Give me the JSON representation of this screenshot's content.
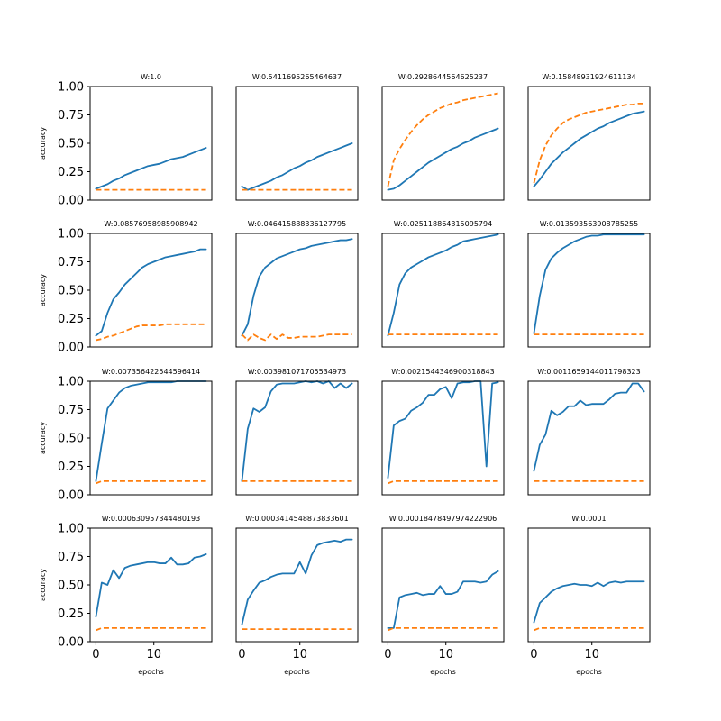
{
  "figure": {
    "panel_titles": [
      "W:1.0",
      "W:0.5411695265464637",
      "W:0.2928644564625237",
      "W:0.15848931924611134",
      "W:0.08576958985908942",
      "W:0.04641588833612779​5",
      "W:0.025118864315095794",
      "W:0.013593563908785255",
      "W:0.007356422544596414",
      "W:0.003981071705534973",
      "W:0.0021544346900318843",
      "W:0.0011659144011798323",
      "W:0.000630957344480193",
      "W:0.0003414548873833601",
      "W:0.00018478497974222906",
      "W:0.0001"
    ],
    "xlabel": "epochs",
    "ylabel": "accuracy"
  },
  "chart_data": {
    "type": "line",
    "layout": "4x4 grid, shared x and y axes",
    "xlabel": "epochs",
    "ylabel": "accuracy",
    "x": [
      0,
      1,
      2,
      3,
      4,
      5,
      6,
      7,
      8,
      9,
      10,
      11,
      12,
      13,
      14,
      15,
      16,
      17,
      18,
      19
    ],
    "xlim": [
      -1,
      20
    ],
    "ylim": [
      0,
      1.0
    ],
    "xticks": [
      "0",
      "10"
    ],
    "yticks": [
      "0.00",
      "0.25",
      "0.50",
      "0.75",
      "1.00"
    ],
    "series_styles": [
      {
        "color": "#1f77b4",
        "style": "solid"
      },
      {
        "color": "#ff7f0e",
        "style": "dashed"
      }
    ],
    "panels": [
      {
        "title": "W:1.0",
        "solid": [
          0.1,
          0.12,
          0.14,
          0.17,
          0.19,
          0.22,
          0.24,
          0.26,
          0.28,
          0.3,
          0.31,
          0.32,
          0.34,
          0.36,
          0.37,
          0.38,
          0.4,
          0.42,
          0.44,
          0.46
        ],
        "dashed": [
          0.09,
          0.09,
          0.09,
          0.09,
          0.09,
          0.09,
          0.09,
          0.09,
          0.09,
          0.09,
          0.09,
          0.09,
          0.09,
          0.09,
          0.09,
          0.09,
          0.09,
          0.09,
          0.09,
          0.09
        ]
      },
      {
        "title": "W:0.5411695265464637",
        "solid": [
          0.12,
          0.09,
          0.11,
          0.13,
          0.15,
          0.17,
          0.2,
          0.22,
          0.25,
          0.28,
          0.3,
          0.33,
          0.35,
          0.38,
          0.4,
          0.42,
          0.44,
          0.46,
          0.48,
          0.5
        ],
        "dashed": [
          0.09,
          0.09,
          0.09,
          0.09,
          0.09,
          0.09,
          0.09,
          0.09,
          0.09,
          0.09,
          0.09,
          0.09,
          0.09,
          0.09,
          0.09,
          0.09,
          0.09,
          0.09,
          0.09,
          0.09
        ]
      },
      {
        "title": "W:0.2928644564625237",
        "solid": [
          0.09,
          0.1,
          0.13,
          0.17,
          0.21,
          0.25,
          0.29,
          0.33,
          0.36,
          0.39,
          0.42,
          0.45,
          0.47,
          0.5,
          0.52,
          0.55,
          0.57,
          0.59,
          0.61,
          0.63
        ],
        "dashed": [
          0.12,
          0.35,
          0.45,
          0.53,
          0.6,
          0.66,
          0.71,
          0.75,
          0.78,
          0.81,
          0.83,
          0.85,
          0.86,
          0.88,
          0.89,
          0.9,
          0.91,
          0.92,
          0.93,
          0.94
        ]
      },
      {
        "title": "W:0.15848931924611134",
        "solid": [
          0.12,
          0.18,
          0.25,
          0.32,
          0.37,
          0.42,
          0.46,
          0.5,
          0.54,
          0.57,
          0.6,
          0.63,
          0.65,
          0.68,
          0.7,
          0.72,
          0.74,
          0.76,
          0.77,
          0.78
        ],
        "dashed": [
          0.15,
          0.35,
          0.48,
          0.57,
          0.63,
          0.68,
          0.71,
          0.73,
          0.75,
          0.77,
          0.78,
          0.79,
          0.8,
          0.81,
          0.82,
          0.83,
          0.84,
          0.84,
          0.85,
          0.85
        ]
      },
      {
        "title": "W:0.08576958985908942",
        "solid": [
          0.1,
          0.14,
          0.3,
          0.42,
          0.48,
          0.55,
          0.6,
          0.65,
          0.7,
          0.73,
          0.75,
          0.77,
          0.79,
          0.8,
          0.81,
          0.82,
          0.83,
          0.84,
          0.86,
          0.86
        ],
        "dashed": [
          0.06,
          0.07,
          0.09,
          0.1,
          0.12,
          0.14,
          0.16,
          0.18,
          0.19,
          0.19,
          0.19,
          0.19,
          0.2,
          0.2,
          0.2,
          0.2,
          0.2,
          0.2,
          0.2,
          0.2
        ]
      },
      {
        "title": "W:0.046415888336127795",
        "solid": [
          0.1,
          0.2,
          0.45,
          0.62,
          0.7,
          0.74,
          0.78,
          0.8,
          0.82,
          0.84,
          0.86,
          0.87,
          0.89,
          0.9,
          0.91,
          0.92,
          0.93,
          0.94,
          0.94,
          0.95
        ],
        "dashed": [
          0.11,
          0.06,
          0.11,
          0.08,
          0.06,
          0.11,
          0.07,
          0.11,
          0.08,
          0.08,
          0.09,
          0.09,
          0.09,
          0.09,
          0.1,
          0.11,
          0.11,
          0.11,
          0.11,
          0.11
        ]
      },
      {
        "title": "W:0.025118864315095794",
        "solid": [
          0.1,
          0.3,
          0.55,
          0.65,
          0.7,
          0.73,
          0.76,
          0.79,
          0.81,
          0.83,
          0.85,
          0.88,
          0.9,
          0.93,
          0.94,
          0.95,
          0.96,
          0.97,
          0.98,
          0.99
        ],
        "dashed": [
          0.11,
          0.11,
          0.11,
          0.11,
          0.11,
          0.11,
          0.11,
          0.11,
          0.11,
          0.11,
          0.11,
          0.11,
          0.11,
          0.11,
          0.11,
          0.11,
          0.11,
          0.11,
          0.11,
          0.11
        ]
      },
      {
        "title": "W:0.013593563908785255",
        "solid": [
          0.12,
          0.45,
          0.68,
          0.78,
          0.83,
          0.87,
          0.9,
          0.93,
          0.95,
          0.97,
          0.98,
          0.98,
          0.99,
          0.99,
          0.99,
          0.99,
          0.99,
          0.99,
          0.99,
          0.99
        ],
        "dashed": [
          0.11,
          0.11,
          0.11,
          0.11,
          0.11,
          0.11,
          0.11,
          0.11,
          0.11,
          0.11,
          0.11,
          0.11,
          0.11,
          0.11,
          0.11,
          0.11,
          0.11,
          0.11,
          0.11,
          0.11
        ]
      },
      {
        "title": "W:0.007356422544596414",
        "solid": [
          0.12,
          0.45,
          0.76,
          0.83,
          0.9,
          0.94,
          0.96,
          0.97,
          0.98,
          0.99,
          0.99,
          0.99,
          0.99,
          0.99,
          1.0,
          1.0,
          1.0,
          1.0,
          1.0,
          1.0
        ],
        "dashed": [
          0.1,
          0.12,
          0.12,
          0.12,
          0.12,
          0.12,
          0.12,
          0.12,
          0.12,
          0.12,
          0.12,
          0.12,
          0.12,
          0.12,
          0.12,
          0.12,
          0.12,
          0.12,
          0.12,
          0.12
        ]
      },
      {
        "title": "W:0.003981071705534973",
        "solid": [
          0.12,
          0.58,
          0.76,
          0.73,
          0.77,
          0.91,
          0.97,
          0.98,
          0.98,
          0.98,
          0.99,
          1.0,
          0.99,
          1.0,
          0.98,
          1.0,
          0.94,
          0.98,
          0.94,
          0.98
        ],
        "dashed": [
          0.12,
          0.12,
          0.12,
          0.12,
          0.12,
          0.12,
          0.12,
          0.12,
          0.12,
          0.12,
          0.12,
          0.12,
          0.12,
          0.12,
          0.12,
          0.12,
          0.12,
          0.12,
          0.12,
          0.12
        ]
      },
      {
        "title": "W:0.0021544346900318843",
        "solid": [
          0.15,
          0.61,
          0.65,
          0.67,
          0.74,
          0.77,
          0.81,
          0.88,
          0.88,
          0.93,
          0.95,
          0.85,
          0.98,
          0.99,
          0.99,
          1.0,
          1.0,
          0.25,
          0.98,
          0.99
        ],
        "dashed": [
          0.1,
          0.12,
          0.12,
          0.12,
          0.12,
          0.12,
          0.12,
          0.12,
          0.12,
          0.12,
          0.12,
          0.12,
          0.12,
          0.12,
          0.12,
          0.12,
          0.12,
          0.12,
          0.12,
          0.12
        ]
      },
      {
        "title": "W:0.0011659144011798323",
        "solid": [
          0.21,
          0.44,
          0.53,
          0.74,
          0.7,
          0.73,
          0.78,
          0.78,
          0.83,
          0.79,
          0.8,
          0.8,
          0.8,
          0.84,
          0.89,
          0.9,
          0.9,
          0.98,
          0.98,
          0.91
        ],
        "dashed": [
          0.12,
          0.12,
          0.12,
          0.12,
          0.12,
          0.12,
          0.12,
          0.12,
          0.12,
          0.12,
          0.12,
          0.12,
          0.12,
          0.12,
          0.12,
          0.12,
          0.12,
          0.12,
          0.12,
          0.12
        ]
      },
      {
        "title": "W:0.000630957344480193",
        "solid": [
          0.22,
          0.52,
          0.5,
          0.63,
          0.56,
          0.65,
          0.67,
          0.68,
          0.69,
          0.7,
          0.7,
          0.69,
          0.69,
          0.74,
          0.68,
          0.68,
          0.69,
          0.74,
          0.75,
          0.77
        ],
        "dashed": [
          0.1,
          0.12,
          0.12,
          0.12,
          0.12,
          0.12,
          0.12,
          0.12,
          0.12,
          0.12,
          0.12,
          0.12,
          0.12,
          0.12,
          0.12,
          0.12,
          0.12,
          0.12,
          0.12,
          0.12
        ]
      },
      {
        "title": "W:0.0003414548873833601",
        "solid": [
          0.15,
          0.37,
          0.45,
          0.52,
          0.54,
          0.57,
          0.59,
          0.6,
          0.6,
          0.6,
          0.7,
          0.6,
          0.76,
          0.85,
          0.87,
          0.88,
          0.89,
          0.88,
          0.9,
          0.9
        ],
        "dashed": [
          0.11,
          0.11,
          0.11,
          0.11,
          0.11,
          0.11,
          0.11,
          0.11,
          0.11,
          0.11,
          0.11,
          0.11,
          0.11,
          0.11,
          0.11,
          0.11,
          0.11,
          0.11,
          0.11,
          0.11
        ]
      },
      {
        "title": "W:0.00018478497974222906",
        "solid": [
          0.12,
          0.12,
          0.39,
          0.41,
          0.42,
          0.43,
          0.41,
          0.42,
          0.42,
          0.49,
          0.42,
          0.42,
          0.44,
          0.53,
          0.53,
          0.53,
          0.52,
          0.53,
          0.59,
          0.62
        ],
        "dashed": [
          0.1,
          0.12,
          0.12,
          0.12,
          0.12,
          0.12,
          0.12,
          0.12,
          0.12,
          0.12,
          0.12,
          0.12,
          0.12,
          0.12,
          0.12,
          0.12,
          0.12,
          0.12,
          0.12,
          0.12
        ]
      },
      {
        "title": "W:0.0001",
        "solid": [
          0.17,
          0.34,
          0.39,
          0.44,
          0.47,
          0.49,
          0.5,
          0.51,
          0.5,
          0.5,
          0.49,
          0.52,
          0.49,
          0.52,
          0.53,
          0.52,
          0.53,
          0.53,
          0.53,
          0.53
        ],
        "dashed": [
          0.1,
          0.12,
          0.12,
          0.12,
          0.12,
          0.12,
          0.12,
          0.12,
          0.12,
          0.12,
          0.12,
          0.12,
          0.12,
          0.12,
          0.12,
          0.12,
          0.12,
          0.12,
          0.12,
          0.12
        ]
      }
    ]
  }
}
